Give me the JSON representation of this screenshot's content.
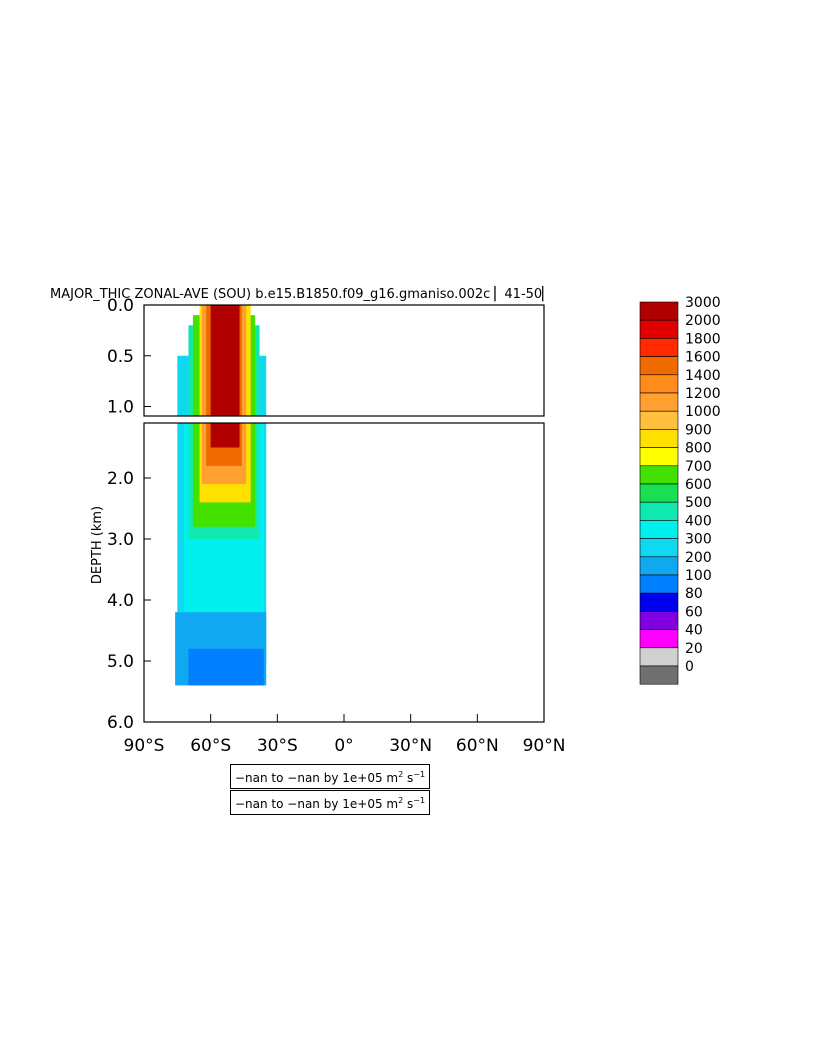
{
  "chart_data": {
    "type": "heatmap",
    "title": "MAJOR_THIC ZONAL-AVE (SOU) b.e15.B1850.f09_g16.gmaniso.002c ▏41-50▏",
    "ylabel": "DEPTH (km)",
    "xlabel": "",
    "x_range": [
      -90,
      90
    ],
    "y_range": [
      0,
      6
    ],
    "y_inverted": true,
    "upper_panel_y_range": [
      0,
      1.1
    ],
    "x_ticks": [
      {
        "value": -90,
        "label": "90°S"
      },
      {
        "value": -60,
        "label": "60°S"
      },
      {
        "value": -30,
        "label": "30°S"
      },
      {
        "value": 0,
        "label": "0°"
      },
      {
        "value": 30,
        "label": "30°N"
      },
      {
        "value": 60,
        "label": "60°N"
      },
      {
        "value": 90,
        "label": "90°N"
      }
    ],
    "upper_y_ticks": [
      {
        "value": 0.0,
        "label": "0.0"
      },
      {
        "value": 0.5,
        "label": "0.5"
      },
      {
        "value": 1.0,
        "label": "1.0"
      }
    ],
    "lower_y_ticks": [
      {
        "value": 2.0,
        "label": "2.0"
      },
      {
        "value": 3.0,
        "label": "3.0"
      },
      {
        "value": 4.0,
        "label": "4.0"
      },
      {
        "value": 5.0,
        "label": "5.0"
      },
      {
        "value": 6.0,
        "label": "6.0"
      }
    ],
    "colorbar": {
      "levels": [
        "3000",
        "2000",
        "1800",
        "1600",
        "1400",
        "1200",
        "1000",
        "900",
        "800",
        "700",
        "600",
        "500",
        "400",
        "300",
        "200",
        "100",
        "80",
        "60",
        "40",
        "20",
        "0"
      ],
      "colors": [
        "#b00000",
        "#e00000",
        "#ff2a00",
        "#f06a00",
        "#ff8c1a",
        "#ffa030",
        "#ffc040",
        "#ffe000",
        "#ffff00",
        "#44e000",
        "#18e050",
        "#10e8b0",
        "#00f0f0",
        "#10d8f0",
        "#10a8f0",
        "#0080ff",
        "#0000ee",
        "#8000e0",
        "#ff00ff",
        "#d0d0d0",
        "#707070"
      ]
    },
    "regions": [
      {
        "lat": [
          -75,
          -35
        ],
        "depth": [
          0.5,
          5.0
        ],
        "value": 300
      },
      {
        "lat": [
          -72,
          -36
        ],
        "depth": [
          1.1,
          5.0
        ],
        "value": 400
      },
      {
        "lat": [
          -70,
          -38
        ],
        "depth": [
          0.2,
          3.0
        ],
        "value": 500
      },
      {
        "lat": [
          -68,
          -40
        ],
        "depth": [
          0.1,
          2.8
        ],
        "value": 700
      },
      {
        "lat": [
          -65,
          -42
        ],
        "depth": [
          0.0,
          2.4
        ],
        "value": 900
      },
      {
        "lat": [
          -64,
          -44
        ],
        "depth": [
          0.0,
          2.1
        ],
        "value": 1200
      },
      {
        "lat": [
          -62,
          -46
        ],
        "depth": [
          0.0,
          1.8
        ],
        "value": 1600
      },
      {
        "lat": [
          -60,
          -47
        ],
        "depth": [
          0.0,
          1.5
        ],
        "value": 3000
      },
      {
        "lat": [
          -76,
          -35
        ],
        "depth": [
          4.2,
          5.4
        ],
        "value": 200
      },
      {
        "lat": [
          -70,
          -36
        ],
        "depth": [
          4.8,
          5.4
        ],
        "value": 100
      }
    ]
  },
  "notes": [
    {
      "text": "−nan to −nan by 1e+05 m",
      "sup1": "2",
      "mid": " s",
      "sup2": "−1"
    },
    {
      "text": "−nan to −nan by 1e+05 m",
      "sup1": "2",
      "mid": " s",
      "sup2": "−1"
    }
  ]
}
